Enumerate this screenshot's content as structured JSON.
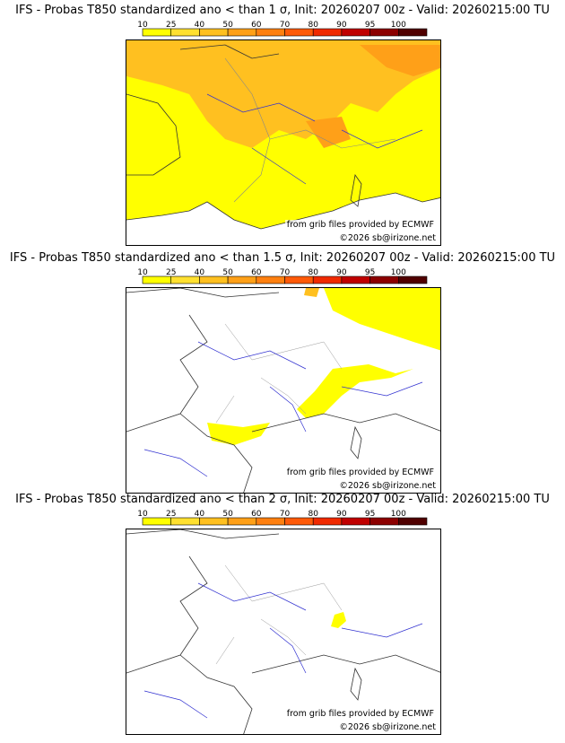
{
  "scale": {
    "ticks": [
      "10",
      "25",
      "40",
      "50",
      "60",
      "70",
      "80",
      "90",
      "95",
      "100"
    ],
    "colors": [
      "#ffff00",
      "#ffe030",
      "#ffc020",
      "#ffa018",
      "#ff8010",
      "#ff5a08",
      "#f02a00",
      "#c00000",
      "#8c0000",
      "#500000"
    ]
  },
  "panels": [
    {
      "title": "IFS - Probas T850  standardized ano < than 1 σ, Init: 20260207 00z - Valid: 20260215:00 TU",
      "credit_source": "from grib files provided by ECMWF",
      "credit_copy": "©2026 sb@irizone.net"
    },
    {
      "title": "IFS - Probas T850  standardized ano < than 1.5 σ, Init: 20260207 00z - Valid: 20260215:00 TU",
      "credit_source": "from grib files provided by ECMWF",
      "credit_copy": "©2026 sb@irizone.net"
    },
    {
      "title": "IFS - Probas T850  standardized ano < than 2 σ, Init: 20260207 00z - Valid: 20260215:00 TU",
      "credit_source": "from grib files provided by ECMWF",
      "credit_copy": "©2026 sb@irizone.net"
    }
  ]
}
